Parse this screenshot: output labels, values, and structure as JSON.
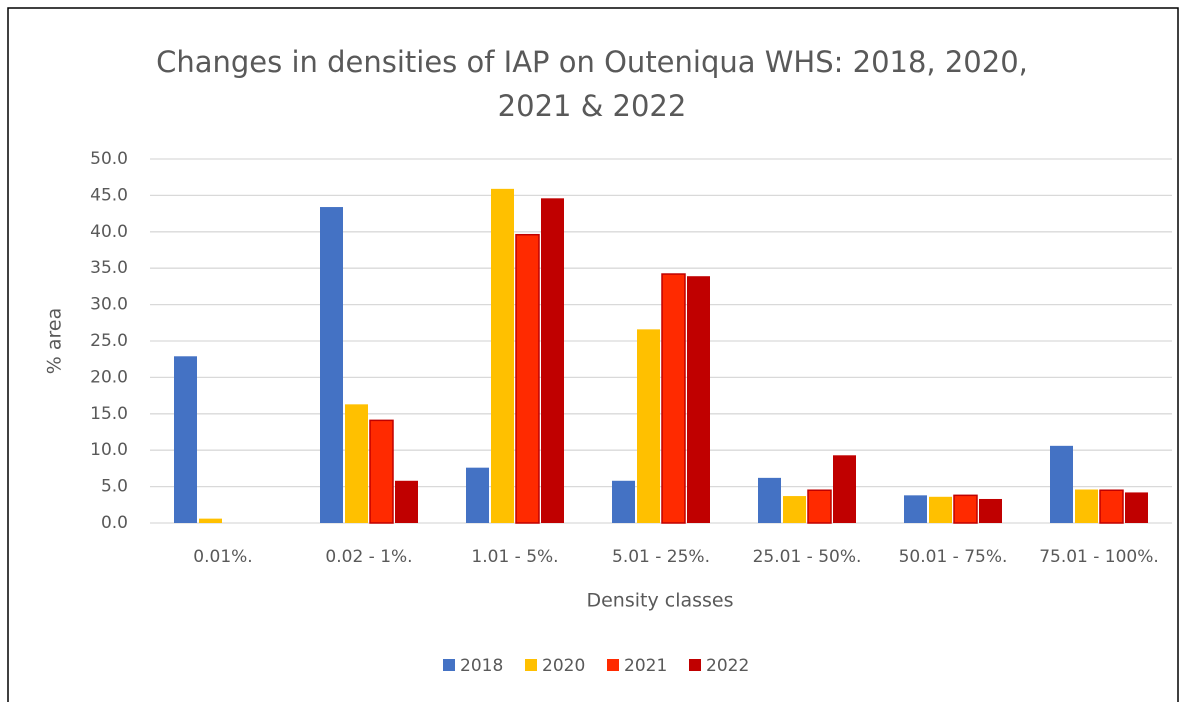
{
  "chart_data": {
    "type": "bar",
    "title": "Changes in densities of IAP on Outeniqua WHS: 2018, 2020, 2021 & 2022",
    "x_label": "Density classes",
    "y_label": "% area",
    "categories": [
      "0.01%.",
      "0.02 - 1%.",
      "1.01 - 5%.",
      "5.01 - 25%.",
      "25.01 - 50%.",
      "50.01 - 75%.",
      "75.01 - 100%."
    ],
    "series": [
      {
        "name": "2018",
        "color": "#4472c4",
        "values": [
          22.9,
          43.4,
          7.6,
          5.8,
          6.2,
          3.8,
          10.6
        ]
      },
      {
        "name": "2020",
        "color": "#ffc000",
        "values": [
          0.6,
          16.3,
          45.9,
          26.6,
          3.7,
          3.6,
          4.6
        ]
      },
      {
        "name": "2021",
        "color": "#ff2a00",
        "values": [
          0,
          14.1,
          39.6,
          34.2,
          4.5,
          3.8,
          4.5
        ]
      },
      {
        "name": "2022",
        "color": "#c00000",
        "values": [
          0,
          5.8,
          44.6,
          33.9,
          9.3,
          3.3,
          4.2
        ]
      }
    ],
    "ylim": [
      0,
      50
    ],
    "yticks": [
      {
        "value": 0,
        "label": "0.0"
      },
      {
        "value": 5,
        "label": "5.0"
      },
      {
        "value": 10,
        "label": "10.0"
      },
      {
        "value": 15,
        "label": "15.0"
      },
      {
        "value": 20,
        "label": "20.0"
      },
      {
        "value": 25,
        "label": "25.0"
      },
      {
        "value": 30,
        "label": "30.0"
      },
      {
        "value": 35,
        "label": "35.0"
      },
      {
        "value": 40,
        "label": "40.0"
      },
      {
        "value": 45,
        "label": "45.0"
      },
      {
        "value": 50,
        "label": "50.0"
      }
    ],
    "grid": true,
    "legend": "bottom"
  }
}
